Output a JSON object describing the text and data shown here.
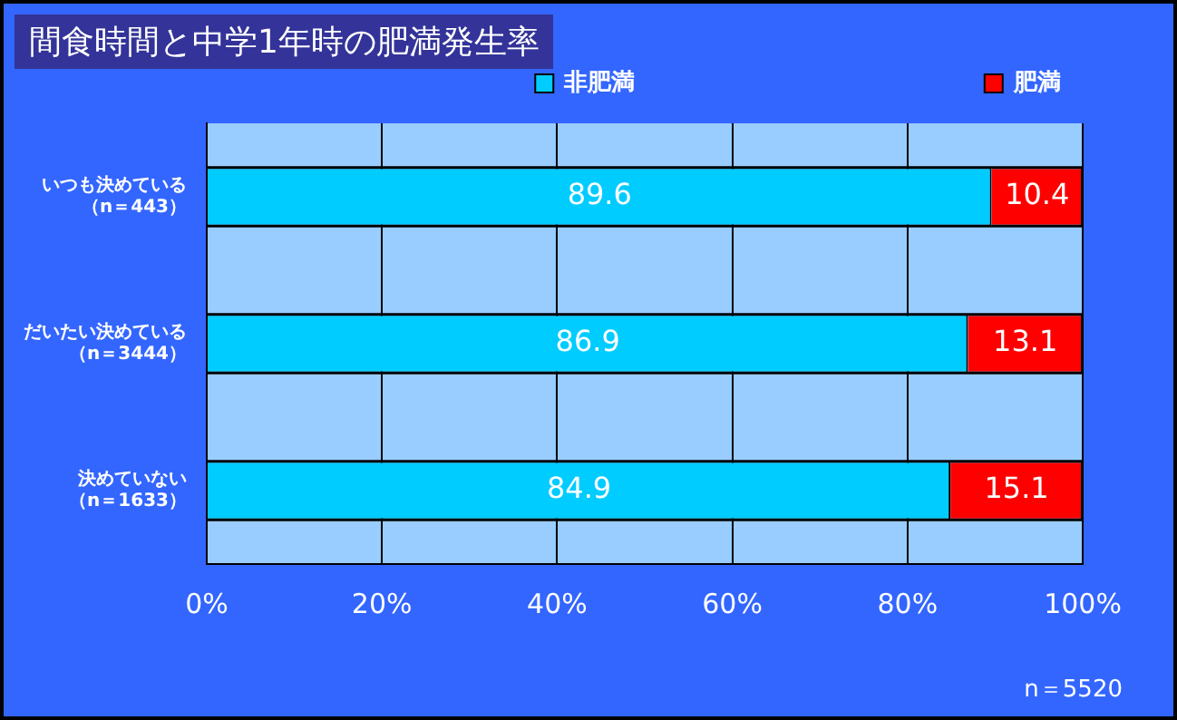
{
  "chart_data": {
    "type": "bar",
    "orientation": "horizontal",
    "stacked": true,
    "title": "間食時間と中学1年時の肥満発生率",
    "categories": [
      "いつも決めている（n＝443）",
      "だいたい決めている（n＝3444）",
      "決めていない（n＝1633）"
    ],
    "series": [
      {
        "name": "非肥満",
        "color": "#00ccff",
        "values": [
          89.6,
          86.9,
          84.9
        ]
      },
      {
        "name": "肥満",
        "color": "#ff0000",
        "values": [
          10.4,
          13.1,
          15.1
        ]
      }
    ],
    "xlim": [
      0,
      100
    ],
    "xticks": [
      {
        "value": 0,
        "label": "0%"
      },
      {
        "value": 20,
        "label": "20%"
      },
      {
        "value": 40,
        "label": "40%"
      },
      {
        "value": 60,
        "label": "60%"
      },
      {
        "value": 80,
        "label": "80%"
      },
      {
        "value": 100,
        "label": "100%"
      }
    ],
    "grid": "x",
    "legend": "top",
    "data_labels": true,
    "annotations": [
      "n＝5520"
    ]
  }
}
